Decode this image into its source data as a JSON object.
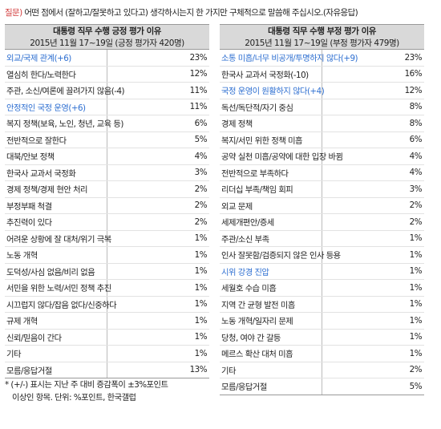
{
  "question": {
    "tag": "질문)",
    "text": " 어떤 점에서 (잘하고/잘못하고 있다고) 생각하시는지 한 가지만 구체적으로 말씀해 주십시오.(자유응답)"
  },
  "positive": {
    "title": "대통령 직무 수행 긍정 평가 이유",
    "subtitle": "2015년 11월 17~19일 (긍정 평가자 420명)",
    "rows": [
      {
        "label": "외교/국제 관계(+6)",
        "value": "23%",
        "highlight": true
      },
      {
        "label": "열심히 한다/노력한다",
        "value": "12%",
        "highlight": false
      },
      {
        "label": "주관, 소신/여론에 끌려가지 않음(-4)",
        "value": "11%",
        "highlight": false
      },
      {
        "label": "안정적인 국정 운영(+6)",
        "value": "11%",
        "highlight": true
      },
      {
        "label": "복지 정책(보육, 노인, 청년, 교육 등)",
        "value": "6%",
        "highlight": false
      },
      {
        "label": "전반적으로 잘한다",
        "value": "5%",
        "highlight": false
      },
      {
        "label": "대북/안보 정책",
        "value": "4%",
        "highlight": false
      },
      {
        "label": "한국사 교과서 국정화",
        "value": "3%",
        "highlight": false
      },
      {
        "label": "경제 정책/경제 현안 처리",
        "value": "2%",
        "highlight": false
      },
      {
        "label": "부정부패 척결",
        "value": "2%",
        "highlight": false
      },
      {
        "label": "추진력이 있다",
        "value": "2%",
        "highlight": false
      },
      {
        "label": "어려운 상황에 잘 대처/위기 극복",
        "value": "1%",
        "highlight": false
      },
      {
        "label": "노동 개혁",
        "value": "1%",
        "highlight": false
      },
      {
        "label": "도덕성/사심 없음/비리 없음",
        "value": "1%",
        "highlight": false
      },
      {
        "label": "서민을 위한 노력/서민 정책 추진",
        "value": "1%",
        "highlight": false
      },
      {
        "label": "시끄럽지 않다/잡음 없다/신중하다",
        "value": "1%",
        "highlight": false
      },
      {
        "label": "규제 개혁",
        "value": "1%",
        "highlight": false
      },
      {
        "label": "신뢰/믿음이 간다",
        "value": "1%",
        "highlight": false
      },
      {
        "label": "기타",
        "value": "1%",
        "highlight": false
      },
      {
        "label": "모름/응답거절",
        "value": "13%",
        "highlight": false
      }
    ]
  },
  "negative": {
    "title": "대통령 직무 수행 부정 평가 이유",
    "subtitle": "2015년 11월 17~19일 (부정 평가자 479명)",
    "rows": [
      {
        "label": "소통 미흡/너무 비공개/투명하지 않다(+9)",
        "value": "23%",
        "highlight": true
      },
      {
        "label": "한국사 교과서 국정화(-10)",
        "value": "16%",
        "highlight": false
      },
      {
        "label": "국정 운영이 원활하지 않다(+4)",
        "value": "12%",
        "highlight": true
      },
      {
        "label": "독선/독단적/자기 중심",
        "value": "8%",
        "highlight": false
      },
      {
        "label": "경제 정책",
        "value": "8%",
        "highlight": false
      },
      {
        "label": "복지/서민 위한 정책 미흡",
        "value": "6%",
        "highlight": false
      },
      {
        "label": "공약 실천 미흡/공약에 대한 입장 바뀜",
        "value": "4%",
        "highlight": false
      },
      {
        "label": "전반적으로 부족하다",
        "value": "4%",
        "highlight": false
      },
      {
        "label": "리더십 부족/책임 회피",
        "value": "3%",
        "highlight": false
      },
      {
        "label": "외교 문제",
        "value": "2%",
        "highlight": false
      },
      {
        "label": "세제개편안/증세",
        "value": "2%",
        "highlight": false
      },
      {
        "label": "주관/소신 부족",
        "value": "1%",
        "highlight": false
      },
      {
        "label": "인사 잘못함/검증되지 않은 인사 등용",
        "value": "1%",
        "highlight": false
      },
      {
        "label": "시위 강경 진압",
        "value": "1%",
        "highlight": true
      },
      {
        "label": "세월호 수습 미흡",
        "value": "1%",
        "highlight": false
      },
      {
        "label": "지역 간 균형 발전 미흡",
        "value": "1%",
        "highlight": false
      },
      {
        "label": "노동 개혁/일자리 문제",
        "value": "1%",
        "highlight": false
      },
      {
        "label": "당청, 여야 간 갈등",
        "value": "1%",
        "highlight": false
      },
      {
        "label": "메르스 확산 대처 미흡",
        "value": "1%",
        "highlight": false
      },
      {
        "label": "기타",
        "value": "2%",
        "highlight": false
      },
      {
        "label": "모름/응답거절",
        "value": "5%",
        "highlight": false
      }
    ]
  },
  "note": {
    "line1": "* (+/-) 표시는 지난 주 대비 증감폭이 ±3%포인트",
    "line2": "이상인 항목. 단위: %포인트, 한국갤럽"
  },
  "colors": {
    "highlight": "#2e6fd1",
    "question_tag": "#d23b3b",
    "header_bg": "#d9d9d9"
  }
}
